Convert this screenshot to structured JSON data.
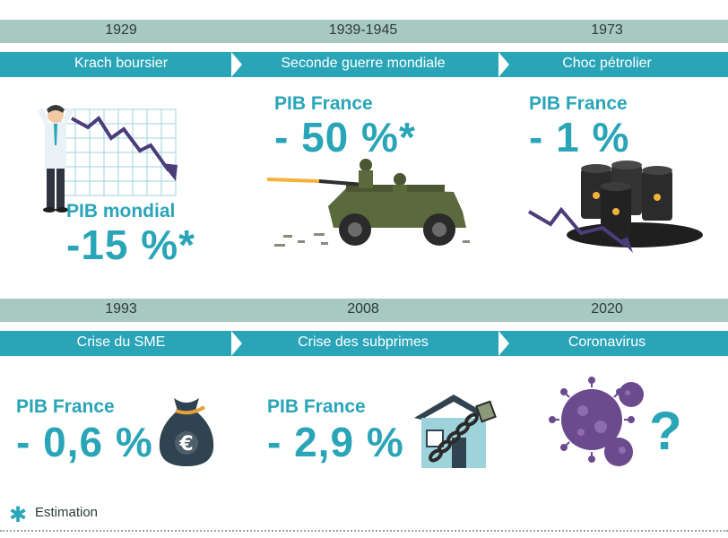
{
  "top_row": {
    "years": [
      "1929",
      "1939-1945",
      "1973"
    ],
    "events": [
      "Krach boursier",
      "Seconde guerre mondiale",
      "Choc pétrolier"
    ]
  },
  "bottom_row": {
    "years": [
      "1993",
      "2008",
      "2020"
    ],
    "events": [
      "Crise du SME",
      "Crise des subprimes",
      "Coronavirus"
    ]
  },
  "cards": {
    "krach": {
      "label": "PIB mondial",
      "value": "-15 %*"
    },
    "guerre": {
      "label": "PIB France",
      "value": "- 50 %*"
    },
    "petrole": {
      "label": "PIB France",
      "value": "- 1 %"
    },
    "sme": {
      "label": "PIB France",
      "value": "- 0,6 %"
    },
    "subprimes": {
      "label": "PIB France",
      "value": "- 2,9 %"
    },
    "coronavirus": {
      "question_mark": "?"
    }
  },
  "footnote": {
    "symbol": "✱",
    "text": "Estimation"
  },
  "icons": [
    "falling-chart-icon",
    "stressed-man-icon",
    "military-jeep-icon",
    "oil-barrels-icon",
    "money-bag-icon",
    "chained-house-icon",
    "virus-icon"
  ],
  "colors": {
    "accent": "#2aa5b8",
    "year_band": "#a8c9c1",
    "arrow": "#4b3c7a",
    "virus": "#6b4a8e"
  }
}
